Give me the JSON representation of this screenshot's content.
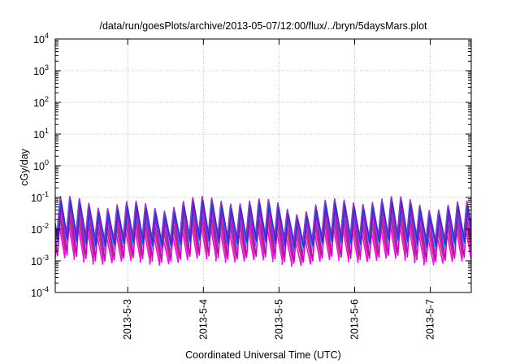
{
  "chart_data": {
    "type": "line",
    "title": "/data/run/goesPlots/archive/2013-05-07/12:00/flux/../bryn/5daysMars.plot",
    "xlabel": "Coordinated Universal Time (UTC)",
    "ylabel": "cGy/day",
    "y_scale": "log",
    "ylim": [
      0.0001,
      10000
    ],
    "y_ticks": [
      {
        "base": "10",
        "exp": "-4",
        "value": 0.0001
      },
      {
        "base": "10",
        "exp": "-3",
        "value": 0.001
      },
      {
        "base": "10",
        "exp": "-2",
        "value": 0.01
      },
      {
        "base": "10",
        "exp": "-1",
        "value": 0.1
      },
      {
        "base": "10",
        "exp": "0",
        "value": 1
      },
      {
        "base": "10",
        "exp": "1",
        "value": 10
      },
      {
        "base": "10",
        "exp": "2",
        "value": 100
      },
      {
        "base": "10",
        "exp": "3",
        "value": 1000
      },
      {
        "base": "10",
        "exp": "4",
        "value": 10000
      }
    ],
    "xlim": [
      "2013-05-02 01:00",
      "2013-05-07 13:00"
    ],
    "x_ticks": [
      "2013-5-3",
      "2013-5-4",
      "2013-5-5",
      "2013-5-6",
      "2013-5-7"
    ],
    "grid": true,
    "series_colors": [
      "#ff00ff",
      "#cc3366",
      "#993399",
      "#00cccc",
      "#3366ff",
      "#9933cc",
      "#cc00cc",
      "#3333cc"
    ],
    "series_profile": {
      "cycle_hours": 3,
      "peak_values": [
        0.012,
        0.02,
        0.03,
        0.045,
        0.06,
        0.07,
        0.035,
        0.05
      ],
      "trough_values": [
        0.0008,
        0.0012,
        0.0016,
        0.0025,
        0.0035,
        0.0045,
        0.001,
        0.003
      ]
    }
  }
}
